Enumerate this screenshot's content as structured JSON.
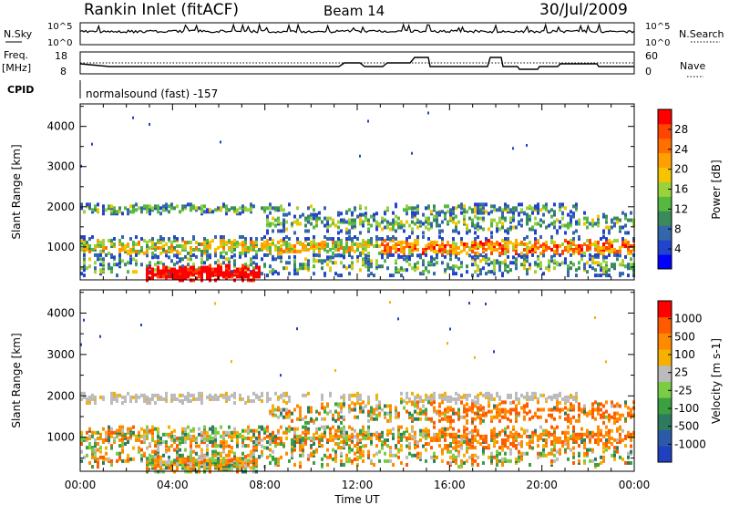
{
  "header": {
    "station": "Rankin Inlet (fitACF)",
    "beam": "Beam 14",
    "date": "30/Jul/2009"
  },
  "top_strips": {
    "nsky_label": "N.Sky",
    "nsearch_label": "N.Search",
    "nsky_ticks": [
      "10^5",
      "10^0"
    ],
    "nsearch_ticks": [
      "10^5",
      "10^0"
    ],
    "freq_label": "Freq.",
    "freq_unit": "[MHz]",
    "freq_ticks": [
      "18",
      "8"
    ],
    "nave_label": "Nave",
    "nave_ticks": [
      "60",
      "0"
    ],
    "cpid_label": "CPID",
    "cpid_text": "normalsound (fast) -157"
  },
  "chart_data": [
    {
      "type": "heatmap",
      "name": "power-panel",
      "ylabel": "Slant Range [km]",
      "yticks": [
        "4000",
        "3000",
        "2000",
        "1000"
      ],
      "ylim": [
        180,
        4560
      ],
      "colorbar_label": "Power [dB]",
      "colorbar_ticks": [
        "28",
        "24",
        "20",
        "16",
        "12",
        "8",
        "4"
      ],
      "colors": [
        "#0000ff",
        "#2244cc",
        "#3366aa",
        "#3a8a5a",
        "#55b840",
        "#9bd23c",
        "#f5c400",
        "#ffa000",
        "#ff7000",
        "#ff4500",
        "#ff0000"
      ]
    },
    {
      "type": "heatmap",
      "name": "velocity-panel",
      "ylabel": "Slant Range [km]",
      "yticks": [
        "4000",
        "3000",
        "2000",
        "1000"
      ],
      "ylim": [
        180,
        4560
      ],
      "colorbar_label": "Velocity [m s-1]",
      "colorbar_ticks": [
        "1000",
        "500",
        "100",
        "25",
        "-25",
        "-100",
        "-500",
        "-1000"
      ],
      "colors": [
        "#2040c0",
        "#2a5aa8",
        "#2e7a60",
        "#3aa040",
        "#7acc44",
        "#bbbbbb",
        "#f5b000",
        "#ff8a00",
        "#ff5a00",
        "#ff0000"
      ]
    }
  ],
  "x_axis": {
    "ticks": [
      "00:00",
      "04:00",
      "08:00",
      "12:00",
      "16:00",
      "20:00",
      "00:00"
    ],
    "label": "Time UT"
  }
}
